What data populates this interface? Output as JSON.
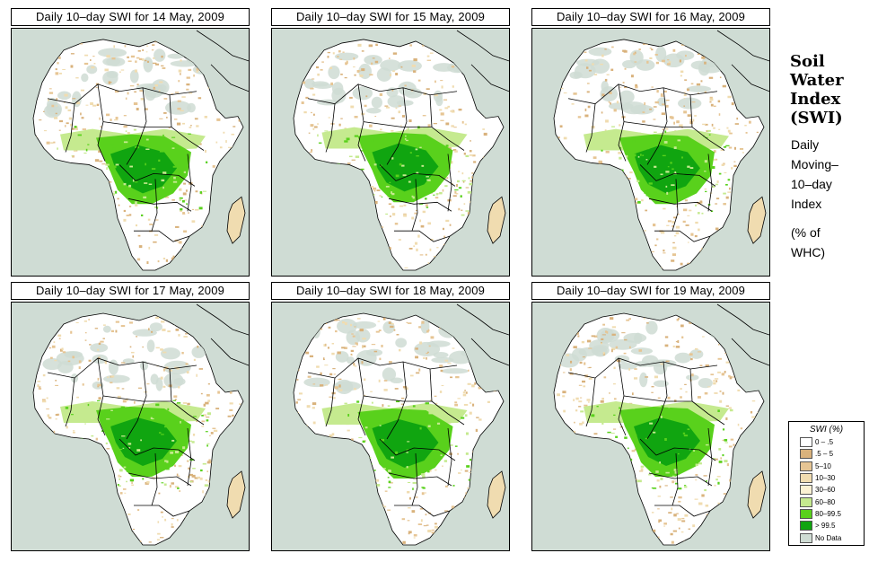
{
  "panels": [
    {
      "title": "Daily 10–day SWI for  14 May, 2009"
    },
    {
      "title": "Daily 10–day SWI for  15 May, 2009"
    },
    {
      "title": "Daily 10–day SWI for  16 May, 2009"
    },
    {
      "title": "Daily 10–day SWI for  17 May, 2009"
    },
    {
      "title": "Daily 10–day SWI for  18 May, 2009"
    },
    {
      "title": "Daily 10–day SWI for  19 May, 2009"
    }
  ],
  "sidebar": {
    "title_lines": [
      "Soil",
      "Water",
      "Index",
      "(SWI)"
    ],
    "desc_lines": [
      "Daily",
      "Moving–",
      "10–day",
      "Index"
    ],
    "unit_lines": [
      "(% of",
      " WHC)"
    ]
  },
  "legend": {
    "title": "SWI (%)",
    "items": [
      {
        "label": "0 – .5",
        "color": "#ffffff"
      },
      {
        "label": ".5 – 5",
        "color": "#d9b27c"
      },
      {
        "label": "5–10",
        "color": "#e6c594"
      },
      {
        "label": "10–30",
        "color": "#f0dcb0"
      },
      {
        "label": "30–60",
        "color": "#fbf1d3"
      },
      {
        "label": "60–80",
        "color": "#c5ea8f"
      },
      {
        "label": "80–99.5",
        "color": "#59d11c"
      },
      {
        "label": "> 99.5",
        "color": "#10a510"
      },
      {
        "label": "No Data",
        "color": "#cfdcd4"
      }
    ]
  },
  "colors": {
    "ocean": "#cfdcd4",
    "land": "#ffffff",
    "desert_nodata": "#cfdcd4",
    "border": "#000000"
  }
}
